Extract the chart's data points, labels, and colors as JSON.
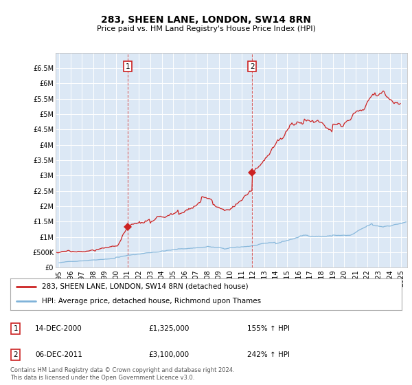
{
  "title": "283, SHEEN LANE, LONDON, SW14 8RN",
  "subtitle": "Price paid vs. HM Land Registry's House Price Index (HPI)",
  "background_color": "#ffffff",
  "plot_bg_color": "#dce8f5",
  "grid_color": "#ffffff",
  "hpi_color": "#7fb3d9",
  "price_color": "#cc2222",
  "sale1_date_x": 2001.0,
  "sale1_price": 1325000,
  "sale1_label": "1",
  "sale2_date_x": 2011.92,
  "sale2_price": 3100000,
  "sale2_label": "2",
  "vline1_x": 2001.0,
  "vline2_x": 2011.92,
  "ylim_max": 7000000,
  "ylim_min": 0,
  "xlim_min": 1994.7,
  "xlim_max": 2025.5,
  "legend_items": [
    {
      "label": "283, SHEEN LANE, LONDON, SW14 8RN (detached house)",
      "color": "#cc2222"
    },
    {
      "label": "HPI: Average price, detached house, Richmond upon Thames",
      "color": "#7fb3d9"
    }
  ],
  "table_rows": [
    {
      "num": "1",
      "date": "14-DEC-2000",
      "price": "£1,325,000",
      "hpi": "155% ↑ HPI"
    },
    {
      "num": "2",
      "date": "06-DEC-2011",
      "price": "£3,100,000",
      "hpi": "242% ↑ HPI"
    }
  ],
  "footnote1": "Contains HM Land Registry data © Crown copyright and database right 2024.",
  "footnote2": "This data is licensed under the Open Government Licence v3.0.",
  "yticks": [
    0,
    500000,
    1000000,
    1500000,
    2000000,
    2500000,
    3000000,
    3500000,
    4000000,
    4500000,
    5000000,
    5500000,
    6000000,
    6500000
  ],
  "ytick_labels": [
    "£0",
    "£500K",
    "£1M",
    "£1.5M",
    "£2M",
    "£2.5M",
    "£3M",
    "£3.5M",
    "£4M",
    "£4.5M",
    "£5M",
    "£5.5M",
    "£6M",
    "£6.5M"
  ]
}
